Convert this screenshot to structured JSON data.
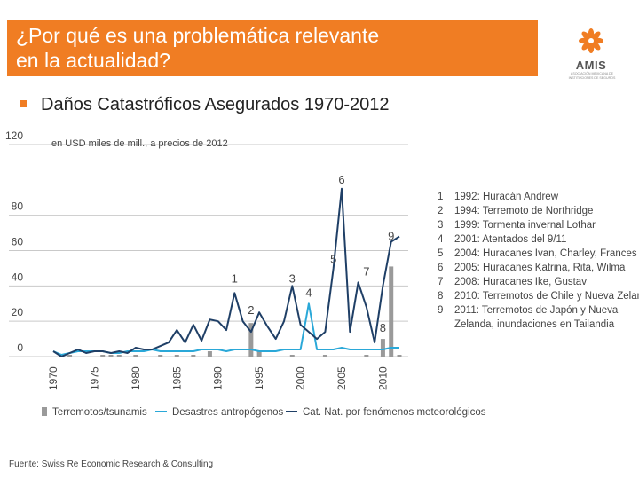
{
  "header": {
    "title_line1": "¿Por qué es una problemática relevante",
    "title_line2": "en la actualidad?",
    "logo_text": "AMIS",
    "logo_sub": "ASOCIACIÓN MEXICANA DE INSTITUCIONES DE SEGUROS",
    "colors": {
      "accent": "#f07d23"
    }
  },
  "subtitle": "Daños Catastróficos Asegurados 1970-2012",
  "chart_data": {
    "type": "line",
    "unit_label": "en USD miles de mill., a precios de 2012",
    "ylim": [
      0,
      120
    ],
    "yticks": [
      0,
      20,
      40,
      60,
      80,
      120
    ],
    "x": [
      1970,
      1971,
      1972,
      1973,
      1974,
      1975,
      1976,
      1977,
      1978,
      1979,
      1980,
      1981,
      1982,
      1983,
      1984,
      1985,
      1986,
      1987,
      1988,
      1989,
      1990,
      1991,
      1992,
      1993,
      1994,
      1995,
      1996,
      1997,
      1998,
      1999,
      2000,
      2001,
      2002,
      2003,
      2004,
      2005,
      2006,
      2007,
      2008,
      2009,
      2010,
      2011,
      2012
    ],
    "xticks": [
      "1970",
      "1975",
      "1980",
      "1985",
      "1990",
      "1995",
      "2000",
      "2005",
      "2010"
    ],
    "series": [
      {
        "name": "Terremotos/tsunamis",
        "kind": "bar",
        "color": "#9a9a9a",
        "values": [
          0,
          0,
          1,
          0,
          0,
          0,
          1,
          1,
          1,
          0,
          1,
          0,
          0,
          1,
          0,
          1,
          0,
          1,
          0,
          3,
          0,
          0,
          0,
          0,
          19,
          3,
          0,
          0,
          0,
          1,
          0,
          0,
          0,
          1,
          0,
          0,
          0,
          0,
          1,
          0,
          10,
          51,
          1
        ]
      },
      {
        "name": "Desastres antropógenos",
        "kind": "line",
        "color": "#2aa8d8",
        "values": [
          3,
          1,
          2,
          3,
          3,
          3,
          3,
          2,
          2,
          3,
          3,
          3,
          4,
          3,
          3,
          3,
          3,
          3,
          4,
          4,
          4,
          3,
          4,
          4,
          4,
          3,
          3,
          3,
          4,
          4,
          4,
          30,
          4,
          4,
          4,
          5,
          4,
          4,
          4,
          4,
          4,
          5,
          5
        ]
      },
      {
        "name": "Cat. Nat. por fenómenos meteorológicos",
        "kind": "line",
        "color": "#1f3f66",
        "values": [
          3,
          0,
          2,
          4,
          2,
          3,
          3,
          2,
          3,
          2,
          5,
          4,
          4,
          6,
          8,
          15,
          8,
          18,
          9,
          21,
          20,
          15,
          36,
          20,
          14,
          25,
          17,
          10,
          20,
          40,
          18,
          14,
          10,
          14,
          50,
          95,
          14,
          42,
          28,
          8,
          40,
          65,
          68
        ]
      }
    ],
    "annotations": [
      {
        "label": "1",
        "x": 1992,
        "y": 39
      },
      {
        "label": "2",
        "x": 1994,
        "y": 21
      },
      {
        "label": "3",
        "x": 1999,
        "y": 39
      },
      {
        "label": "4",
        "x": 2001,
        "y": 31
      },
      {
        "label": "5",
        "x": 2004,
        "y": 50
      },
      {
        "label": "6",
        "x": 2005,
        "y": 95
      },
      {
        "label": "7",
        "x": 2008,
        "y": 43
      },
      {
        "label": "8",
        "x": 2010,
        "y": 11
      },
      {
        "label": "9",
        "x": 2011,
        "y": 63
      }
    ],
    "legend": [
      "Terremotos/tsunamis",
      "Desastres antropógenos",
      "Cat. Nat. por fenómenos meteorológicos"
    ],
    "grid": true
  },
  "events": [
    {
      "num": "1",
      "text": "1992: Huracán Andrew"
    },
    {
      "num": "2",
      "text": "1994: Terremoto de Northridge"
    },
    {
      "num": "3",
      "text": "1999: Tormenta invernal Lothar"
    },
    {
      "num": "4",
      "text": "2001: Atentados del 9/11"
    },
    {
      "num": "5",
      "text": "2004: Huracanes Ivan, Charley, Frances"
    },
    {
      "num": "6",
      "text": "2005: Huracanes Katrina, Rita, Wilma"
    },
    {
      "num": "7",
      "text": "2008: Huracanes Ike, Gustav"
    },
    {
      "num": "8",
      "text": "2010: Terremotos de Chile y Nueva Zelanda"
    },
    {
      "num": "9",
      "text": "2011: Terremotos de Japón y Nueva",
      "cont": "Zelanda, inundaciones en Tailandia"
    }
  ],
  "source": "Fuente: Swiss Re Economic Research & Consulting"
}
